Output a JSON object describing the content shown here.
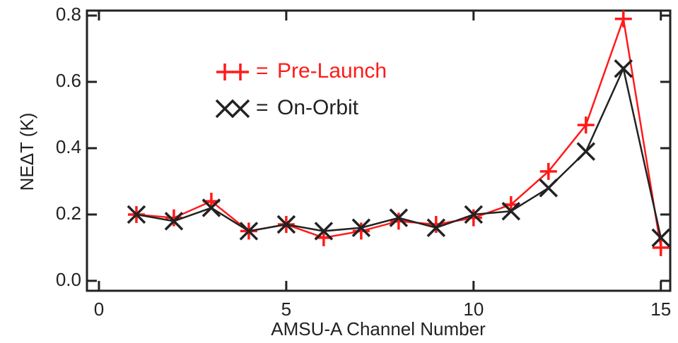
{
  "chart_data": {
    "type": "line",
    "x_label": "AMSU-A Channel Number",
    "y_label": "NEΔT (K)",
    "x": [
      1,
      2,
      3,
      4,
      5,
      6,
      7,
      8,
      9,
      10,
      11,
      12,
      13,
      14,
      15
    ],
    "series": [
      {
        "name": "Pre-Launch",
        "color": "#ff1a1a",
        "marker": "plus",
        "values": [
          0.2,
          0.19,
          0.24,
          0.15,
          0.17,
          0.13,
          0.15,
          0.18,
          0.17,
          0.19,
          0.23,
          0.33,
          0.47,
          0.79,
          0.1
        ]
      },
      {
        "name": "On-Orbit",
        "color": "#222222",
        "marker": "x",
        "values": [
          0.2,
          0.18,
          0.22,
          0.15,
          0.17,
          0.15,
          0.16,
          0.19,
          0.16,
          0.2,
          0.21,
          0.28,
          0.39,
          0.64,
          0.13
        ]
      }
    ],
    "legend_separator": "=",
    "xlim": [
      -0.32,
      15.25
    ],
    "xticks": [
      0,
      5,
      10,
      15
    ],
    "ylim": [
      -0.03,
      0.815
    ],
    "yticks": [
      {
        "value": 0,
        "label": "0.0"
      },
      0.2,
      0.4,
      0.6,
      0.8
    ]
  }
}
